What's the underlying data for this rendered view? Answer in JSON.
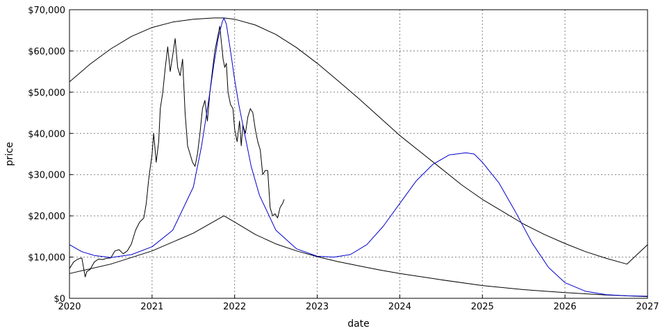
{
  "chart_data": {
    "type": "line",
    "title": "",
    "xlabel": "date",
    "ylabel": "price",
    "xlim": [
      2020,
      2027
    ],
    "ylim": [
      0,
      70000
    ],
    "x_ticks": [
      2020,
      2021,
      2022,
      2023,
      2024,
      2025,
      2026,
      2027
    ],
    "x_tick_labels": [
      "2020",
      "2021",
      "2022",
      "2023",
      "2024",
      "2025",
      "2026",
      "2027"
    ],
    "y_ticks": [
      0,
      10000,
      20000,
      30000,
      40000,
      50000,
      60000,
      70000
    ],
    "y_tick_labels": [
      "$0",
      "$10,000",
      "$20,000",
      "$30,000",
      "$40,000",
      "$50,000",
      "$60,000",
      "$70,000"
    ],
    "grid": true,
    "colors": {
      "price": "#000000",
      "upper": "#000000",
      "lower": "#000000",
      "model": "#0000cc"
    },
    "series": [
      {
        "key": "price",
        "x": [
          2020.0,
          2020.05,
          2020.1,
          2020.15,
          2020.19,
          2020.21,
          2020.25,
          2020.3,
          2020.35,
          2020.4,
          2020.45,
          2020.5,
          2020.55,
          2020.6,
          2020.65,
          2020.7,
          2020.75,
          2020.8,
          2020.85,
          2020.9,
          2020.93,
          2020.96,
          2021.0,
          2021.02,
          2021.05,
          2021.08,
          2021.1,
          2021.13,
          2021.16,
          2021.19,
          2021.22,
          2021.25,
          2021.28,
          2021.31,
          2021.34,
          2021.37,
          2021.4,
          2021.43,
          2021.46,
          2021.49,
          2021.52,
          2021.55,
          2021.58,
          2021.61,
          2021.64,
          2021.67,
          2021.7,
          2021.73,
          2021.76,
          2021.79,
          2021.82,
          2021.84,
          2021.86,
          2021.88,
          2021.9,
          2021.92,
          2021.95,
          2021.98,
          2022.0,
          2022.03,
          2022.06,
          2022.08,
          2022.1,
          2022.13,
          2022.16,
          2022.19,
          2022.22,
          2022.25,
          2022.28,
          2022.31,
          2022.34,
          2022.37,
          2022.4,
          2022.43,
          2022.46,
          2022.49,
          2022.52,
          2022.55,
          2022.58,
          2022.6
        ],
        "y": [
          7200,
          8800,
          9500,
          9800,
          5200,
          6500,
          7000,
          8800,
          9500,
          9400,
          9700,
          9800,
          11500,
          11800,
          10800,
          11500,
          13200,
          16500,
          18500,
          19500,
          23000,
          29000,
          35000,
          40000,
          33000,
          38000,
          46000,
          50000,
          56000,
          61000,
          55000,
          59000,
          63000,
          56000,
          54000,
          58000,
          45000,
          37000,
          35000,
          33000,
          32000,
          35000,
          40000,
          46000,
          48000,
          43000,
          50000,
          55000,
          60000,
          63000,
          66000,
          62000,
          58000,
          56000,
          57000,
          50000,
          47000,
          46000,
          41000,
          38000,
          43000,
          37000,
          42000,
          40000,
          44000,
          46000,
          45000,
          41000,
          38000,
          36000,
          30000,
          31000,
          31000,
          22000,
          20000,
          20500,
          19500,
          22000,
          23000,
          24000
        ]
      },
      {
        "key": "upper",
        "x": [
          2020.0,
          2020.25,
          2020.5,
          2020.75,
          2021.0,
          2021.25,
          2021.5,
          2021.75,
          2021.87,
          2022.0,
          2022.25,
          2022.5,
          2022.75,
          2023.0,
          2023.25,
          2023.5,
          2023.75,
          2024.0,
          2024.25,
          2024.5,
          2024.75,
          2025.0,
          2025.25,
          2025.5,
          2025.75,
          2026.0,
          2026.25,
          2026.5,
          2026.75,
          2027.0
        ],
        "y": [
          52500,
          56800,
          60500,
          63500,
          65700,
          67000,
          67700,
          68000,
          68000,
          67700,
          66300,
          64000,
          60800,
          57000,
          52800,
          48500,
          44000,
          39500,
          35500,
          31500,
          27500,
          24000,
          21000,
          18000,
          15500,
          13300,
          11300,
          9700,
          8300,
          13000
        ]
      },
      {
        "key": "lower",
        "x": [
          2020.0,
          2020.5,
          2021.0,
          2021.5,
          2021.87,
          2022.0,
          2022.25,
          2022.5,
          2022.75,
          2023.0,
          2023.25,
          2023.5,
          2023.75,
          2024.0,
          2024.5,
          2025.0,
          2025.5,
          2026.0,
          2026.5,
          2027.0
        ],
        "y": [
          6000,
          8300,
          11500,
          15800,
          20000,
          18500,
          15500,
          13200,
          11500,
          10100,
          8900,
          7900,
          6900,
          6000,
          4500,
          3100,
          2100,
          1400,
          800,
          400
        ]
      },
      {
        "key": "model",
        "x": [
          2020.0,
          2020.15,
          2020.3,
          2020.5,
          2020.75,
          2021.0,
          2021.25,
          2021.5,
          2021.6,
          2021.7,
          2021.75,
          2021.8,
          2021.85,
          2021.87,
          2021.9,
          2021.95,
          2022.0,
          2022.05,
          2022.1,
          2022.2,
          2022.3,
          2022.5,
          2022.75,
          2023.0,
          2023.2,
          2023.4,
          2023.6,
          2023.8,
          2024.0,
          2024.2,
          2024.4,
          2024.6,
          2024.8,
          2024.9,
          2025.0,
          2025.2,
          2025.4,
          2025.6,
          2025.8,
          2026.0,
          2026.25,
          2026.5,
          2026.75,
          2027.0
        ],
        "y": [
          13000,
          11300,
          10400,
          9900,
          10600,
          12500,
          16500,
          27000,
          37000,
          50000,
          57000,
          63000,
          67000,
          68000,
          66500,
          60000,
          53000,
          47000,
          42000,
          32000,
          25000,
          16500,
          12000,
          10200,
          10000,
          10600,
          13000,
          17500,
          23000,
          28500,
          32500,
          34800,
          35300,
          35000,
          33000,
          28000,
          21000,
          13500,
          7500,
          3800,
          1700,
          900,
          600,
          500
        ]
      }
    ]
  }
}
